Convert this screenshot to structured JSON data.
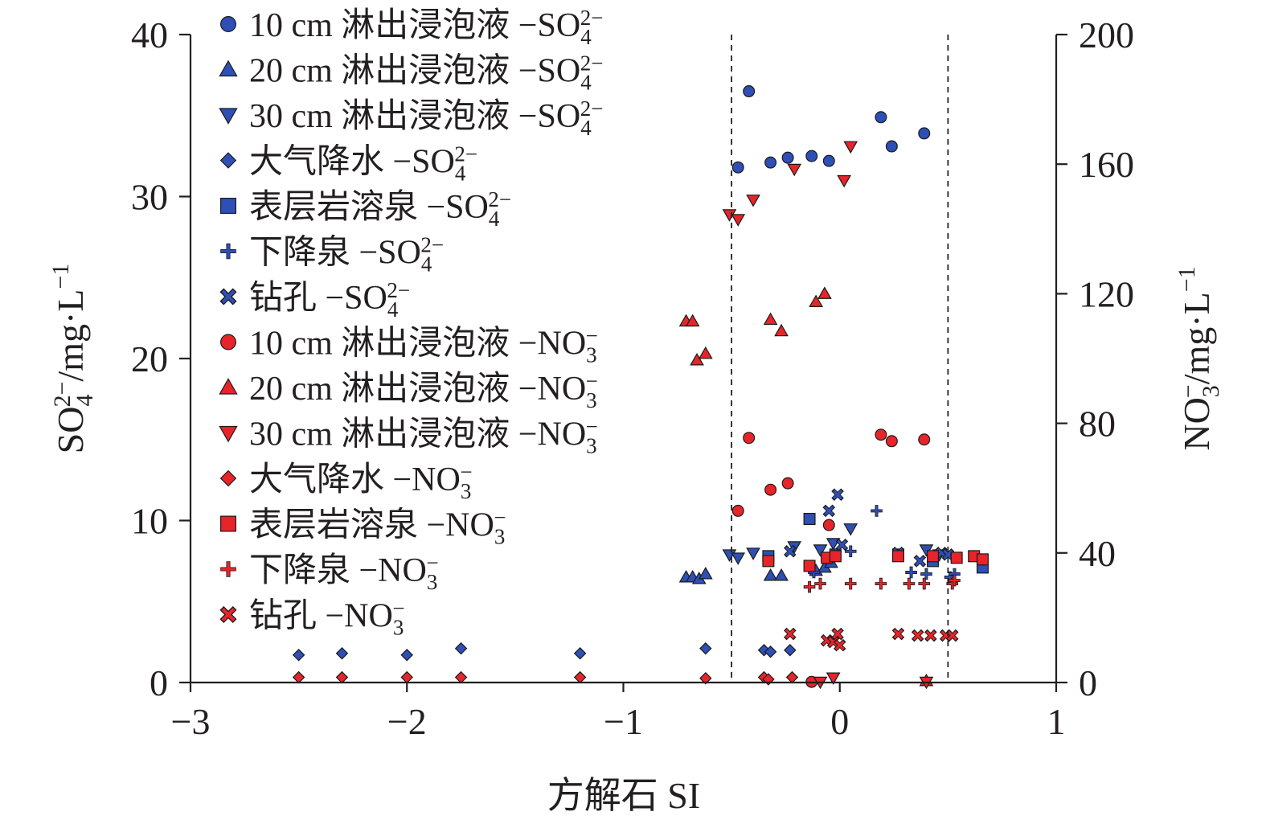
{
  "chart_data": {
    "type": "scatter",
    "x": {
      "label": "方解石 SI",
      "range": [
        -3,
        1
      ],
      "ticks": [
        -3,
        -2,
        -1,
        0,
        1
      ],
      "tick_labels": [
        "−3",
        "−2",
        "−1",
        "0",
        "1"
      ]
    },
    "y_left": {
      "label": "SO₄²⁻/mg·L⁻¹",
      "range": [
        0,
        40
      ],
      "ticks": [
        0,
        10,
        20,
        30,
        40
      ],
      "tick_labels": [
        "0",
        "10",
        "20",
        "30",
        "40"
      ]
    },
    "y_right": {
      "label": "NO₃⁻/mg·L⁻¹",
      "range": [
        0,
        200
      ],
      "ticks": [
        0,
        40,
        80,
        120,
        160,
        200
      ],
      "tick_labels": [
        "0",
        "40",
        "80",
        "120",
        "160",
        "200"
      ]
    },
    "reference_lines_x": [
      -0.5,
      0.5
    ],
    "legend_position": "top-left",
    "colors": {
      "so4": "#2e4fb5",
      "no3": "#e8242b",
      "edge": "#1a1a1a",
      "axis": "#231f20"
    },
    "series": [
      {
        "name": "10 cm 淋出浸泡液",
        "ion": "SO4",
        "axis": "left",
        "marker": "circle",
        "points": [
          [
            -0.47,
            31.8
          ],
          [
            -0.42,
            36.5
          ],
          [
            -0.32,
            32.1
          ],
          [
            -0.24,
            32.4
          ],
          [
            -0.13,
            32.5
          ],
          [
            -0.05,
            32.2
          ],
          [
            0.19,
            34.9
          ],
          [
            0.24,
            33.1
          ],
          [
            0.39,
            33.9
          ]
        ]
      },
      {
        "name": "20 cm 淋出浸泡液",
        "ion": "SO4",
        "axis": "left",
        "marker": "triangle-up",
        "points": [
          [
            -0.71,
            6.5
          ],
          [
            -0.68,
            6.5
          ],
          [
            -0.65,
            6.4
          ],
          [
            -0.62,
            6.7
          ],
          [
            -0.32,
            6.6
          ],
          [
            -0.27,
            6.6
          ],
          [
            -0.11,
            6.9
          ],
          [
            -0.07,
            7.1
          ],
          [
            -0.04,
            7.4
          ]
        ]
      },
      {
        "name": "30 cm 淋出浸泡液",
        "ion": "SO4",
        "axis": "left",
        "marker": "triangle-down",
        "points": [
          [
            -0.51,
            7.9
          ],
          [
            -0.47,
            7.7
          ],
          [
            -0.4,
            8.0
          ],
          [
            -0.21,
            8.4
          ],
          [
            -0.09,
            8.2
          ],
          [
            -0.03,
            8.6
          ],
          [
            0.05,
            9.5
          ],
          [
            0.4,
            8.2
          ],
          [
            0.46,
            7.9
          ]
        ]
      },
      {
        "name": "大气降水",
        "ion": "SO4",
        "axis": "left",
        "marker": "diamond",
        "points": [
          [
            -2.5,
            1.7
          ],
          [
            -2.3,
            1.8
          ],
          [
            -2.0,
            1.7
          ],
          [
            -1.75,
            2.1
          ],
          [
            -1.2,
            1.8
          ],
          [
            -0.62,
            2.1
          ],
          [
            -0.35,
            2.0
          ],
          [
            -0.32,
            1.9
          ],
          [
            -0.23,
            2.0
          ]
        ]
      },
      {
        "name": "表层岩溶泉",
        "ion": "SO4",
        "axis": "left",
        "marker": "square",
        "points": [
          [
            -0.33,
            7.8
          ],
          [
            -0.14,
            10.1
          ],
          [
            -0.02,
            7.9
          ],
          [
            0.27,
            7.9
          ],
          [
            0.43,
            7.5
          ],
          [
            0.66,
            7.1
          ]
        ]
      },
      {
        "name": "下降泉",
        "ion": "SO4",
        "axis": "left",
        "marker": "plus",
        "points": [
          [
            -0.12,
            6.8
          ],
          [
            0.05,
            8.1
          ],
          [
            0.17,
            10.6
          ],
          [
            0.33,
            6.8
          ],
          [
            0.4,
            6.7
          ],
          [
            0.51,
            6.5
          ],
          [
            0.53,
            6.7
          ]
        ]
      },
      {
        "name": "钻孔",
        "ion": "SO4",
        "axis": "left",
        "marker": "cross",
        "points": [
          [
            -0.23,
            8.1
          ],
          [
            -0.05,
            10.6
          ],
          [
            -0.01,
            11.6
          ],
          [
            0.01,
            8.5
          ],
          [
            0.27,
            8.0
          ],
          [
            0.37,
            7.5
          ],
          [
            0.47,
            8.0
          ],
          [
            0.5,
            7.9
          ]
        ]
      },
      {
        "name": "10 cm 淋出浸泡液",
        "ion": "NO3",
        "axis": "right",
        "marker": "circle",
        "points": [
          [
            -0.47,
            53
          ],
          [
            -0.42,
            75.5
          ],
          [
            -0.32,
            59.5
          ],
          [
            -0.24,
            61.5
          ],
          [
            -0.13,
            0.2
          ],
          [
            -0.05,
            48.6
          ],
          [
            0.19,
            76.5
          ],
          [
            0.24,
            74.5
          ],
          [
            0.39,
            75
          ]
        ]
      },
      {
        "name": "20 cm 淋出浸泡液",
        "ion": "NO3",
        "axis": "right",
        "marker": "triangle-up",
        "points": [
          [
            -0.71,
            111.5
          ],
          [
            -0.68,
            111.5
          ],
          [
            -0.66,
            99.5
          ],
          [
            -0.62,
            101.5
          ],
          [
            -0.32,
            112
          ],
          [
            -0.27,
            108.5
          ],
          [
            -0.11,
            117.5
          ],
          [
            -0.07,
            120
          ],
          [
            0.4,
            0.5
          ]
        ]
      },
      {
        "name": "30 cm 淋出浸泡液",
        "ion": "NO3",
        "axis": "right",
        "marker": "triangle-down",
        "points": [
          [
            -0.51,
            144.5
          ],
          [
            -0.47,
            143
          ],
          [
            -0.4,
            149
          ],
          [
            -0.21,
            158.5
          ],
          [
            -0.09,
            0.2
          ],
          [
            -0.03,
            1.5
          ],
          [
            0.05,
            165.5
          ],
          [
            0.02,
            155
          ],
          [
            0.4,
            0.2
          ]
        ]
      },
      {
        "name": "大气降水",
        "ion": "NO3",
        "axis": "right",
        "marker": "diamond",
        "points": [
          [
            -2.5,
            1.6
          ],
          [
            -2.3,
            1.6
          ],
          [
            -2.0,
            1.6
          ],
          [
            -1.75,
            1.6
          ],
          [
            -1.2,
            1.6
          ],
          [
            -0.62,
            1.3
          ],
          [
            -0.35,
            1.6
          ],
          [
            -0.33,
            1.0
          ],
          [
            -0.22,
            1.6
          ]
        ]
      },
      {
        "name": "表层岩溶泉",
        "ion": "NO3",
        "axis": "right",
        "marker": "square",
        "points": [
          [
            -0.33,
            37.5
          ],
          [
            -0.14,
            36
          ],
          [
            -0.06,
            38.5
          ],
          [
            -0.02,
            39
          ],
          [
            0.27,
            39
          ],
          [
            0.43,
            39
          ],
          [
            0.54,
            38.5
          ],
          [
            0.62,
            39
          ],
          [
            0.66,
            38
          ]
        ]
      },
      {
        "name": "下降泉",
        "ion": "NO3",
        "axis": "right",
        "marker": "plus",
        "points": [
          [
            -0.14,
            29.5
          ],
          [
            -0.09,
            30.5
          ],
          [
            0.05,
            30.5
          ],
          [
            0.19,
            30.5
          ],
          [
            0.32,
            30.5
          ],
          [
            0.39,
            30.5
          ],
          [
            0.52,
            30.5
          ],
          [
            0.53,
            31.5
          ]
        ]
      },
      {
        "name": "钻孔",
        "ion": "NO3",
        "axis": "right",
        "marker": "cross",
        "points": [
          [
            -0.23,
            15
          ],
          [
            -0.06,
            13
          ],
          [
            -0.03,
            12.5
          ],
          [
            -0.01,
            15
          ],
          [
            0.0,
            11.5
          ],
          [
            0.27,
            15
          ],
          [
            0.36,
            14.5
          ],
          [
            0.42,
            14.5
          ],
          [
            0.49,
            14.5
          ],
          [
            0.52,
            14.5
          ]
        ]
      }
    ],
    "legend": [
      {
        "marker": "circle",
        "ion": "SO4",
        "text": "10 cm 淋出浸泡液 −SO",
        "sub": "4",
        "sup": "2−"
      },
      {
        "marker": "triangle-up",
        "ion": "SO4",
        "text": "20 cm 淋出浸泡液 −SO",
        "sub": "4",
        "sup": "2−"
      },
      {
        "marker": "triangle-down",
        "ion": "SO4",
        "text": "30 cm 淋出浸泡液 −SO",
        "sub": "4",
        "sup": "2−"
      },
      {
        "marker": "diamond",
        "ion": "SO4",
        "text": "大气降水 −SO",
        "sub": "4",
        "sup": "2−"
      },
      {
        "marker": "square",
        "ion": "SO4",
        "text": "表层岩溶泉 −SO",
        "sub": "4",
        "sup": "2−"
      },
      {
        "marker": "plus",
        "ion": "SO4",
        "text": "下降泉 −SO",
        "sub": "4",
        "sup": "2−"
      },
      {
        "marker": "cross",
        "ion": "SO4",
        "text": "钻孔 −SO",
        "sub": "4",
        "sup": "2−"
      },
      {
        "marker": "circle",
        "ion": "NO3",
        "text": "10 cm 淋出浸泡液 −NO",
        "sub": "3",
        "sup": "−"
      },
      {
        "marker": "triangle-up",
        "ion": "NO3",
        "text": "20 cm 淋出浸泡液 −NO",
        "sub": "3",
        "sup": "−"
      },
      {
        "marker": "triangle-down",
        "ion": "NO3",
        "text": "30 cm 淋出浸泡液 −NO",
        "sub": "3",
        "sup": "−"
      },
      {
        "marker": "diamond",
        "ion": "NO3",
        "text": "大气降水 −NO",
        "sub": "3",
        "sup": "−"
      },
      {
        "marker": "square",
        "ion": "NO3",
        "text": "表层岩溶泉 −NO",
        "sub": "3",
        "sup": "−"
      },
      {
        "marker": "plus",
        "ion": "NO3",
        "text": "下降泉 −NO",
        "sub": "3",
        "sup": "−"
      },
      {
        "marker": "cross",
        "ion": "NO3",
        "text": "钻孔 −NO",
        "sub": "3",
        "sup": "−"
      }
    ]
  }
}
